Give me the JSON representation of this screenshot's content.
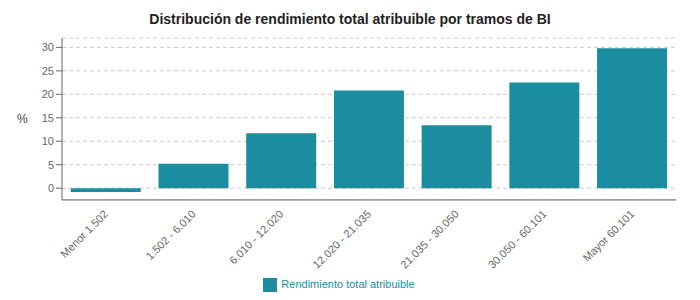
{
  "chart_data": {
    "type": "bar",
    "title": "Distribución de rendimiento total atribuible por tramos de BI",
    "categories": [
      "Menor 1.502",
      "1.502 - 6.010",
      "6.010 - 12.020",
      "12.020 - 21.035",
      "21.035 - 30.050",
      "30.050 - 60.101",
      "Mayor 60.101"
    ],
    "series": [
      {
        "name": "Rendimiento total atribuible",
        "color": "#1a8da0",
        "values": [
          -0.8,
          5.2,
          11.7,
          20.8,
          13.4,
          22.5,
          29.8
        ]
      }
    ],
    "ylabel": "%",
    "ylim": [
      -2.5,
      32
    ],
    "yticks": [
      0,
      5,
      10,
      15,
      20,
      25,
      30
    ],
    "grid": true,
    "legend": "bottom"
  }
}
